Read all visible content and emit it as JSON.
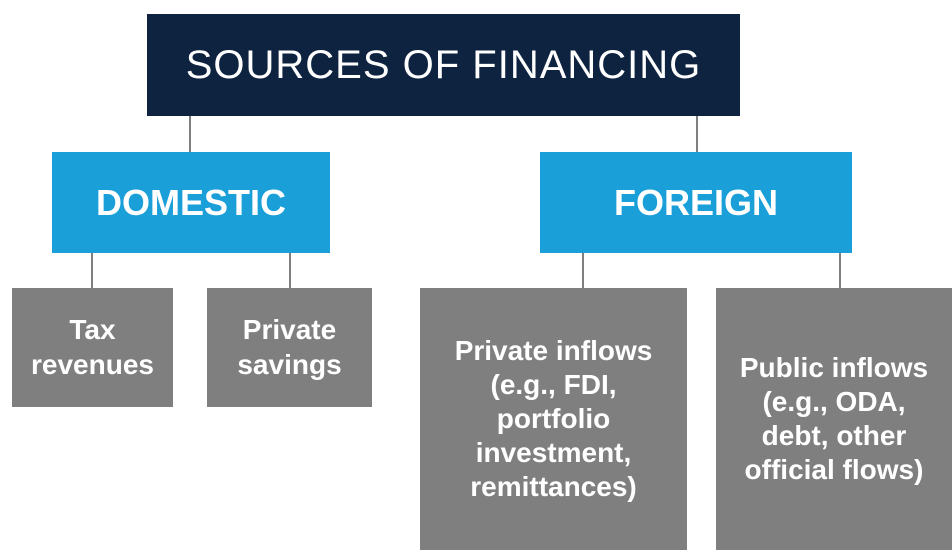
{
  "title": "SOURCES OF FINANCING",
  "nodes": [
    {
      "label": [
        "DOMESTIC"
      ]
    },
    {
      "label": [
        "FOREIGN"
      ]
    },
    {
      "label": [
        "Tax",
        "revenues"
      ]
    },
    {
      "label": [
        "Private",
        "savings"
      ]
    },
    {
      "label": [
        "Private inflows",
        "(e.g., FDI,",
        "portfolio",
        "investment,",
        "remittances)"
      ]
    },
    {
      "label": [
        "Public inflows",
        "(e.g., ODA,",
        "debt, other",
        "official flows)"
      ]
    }
  ]
}
